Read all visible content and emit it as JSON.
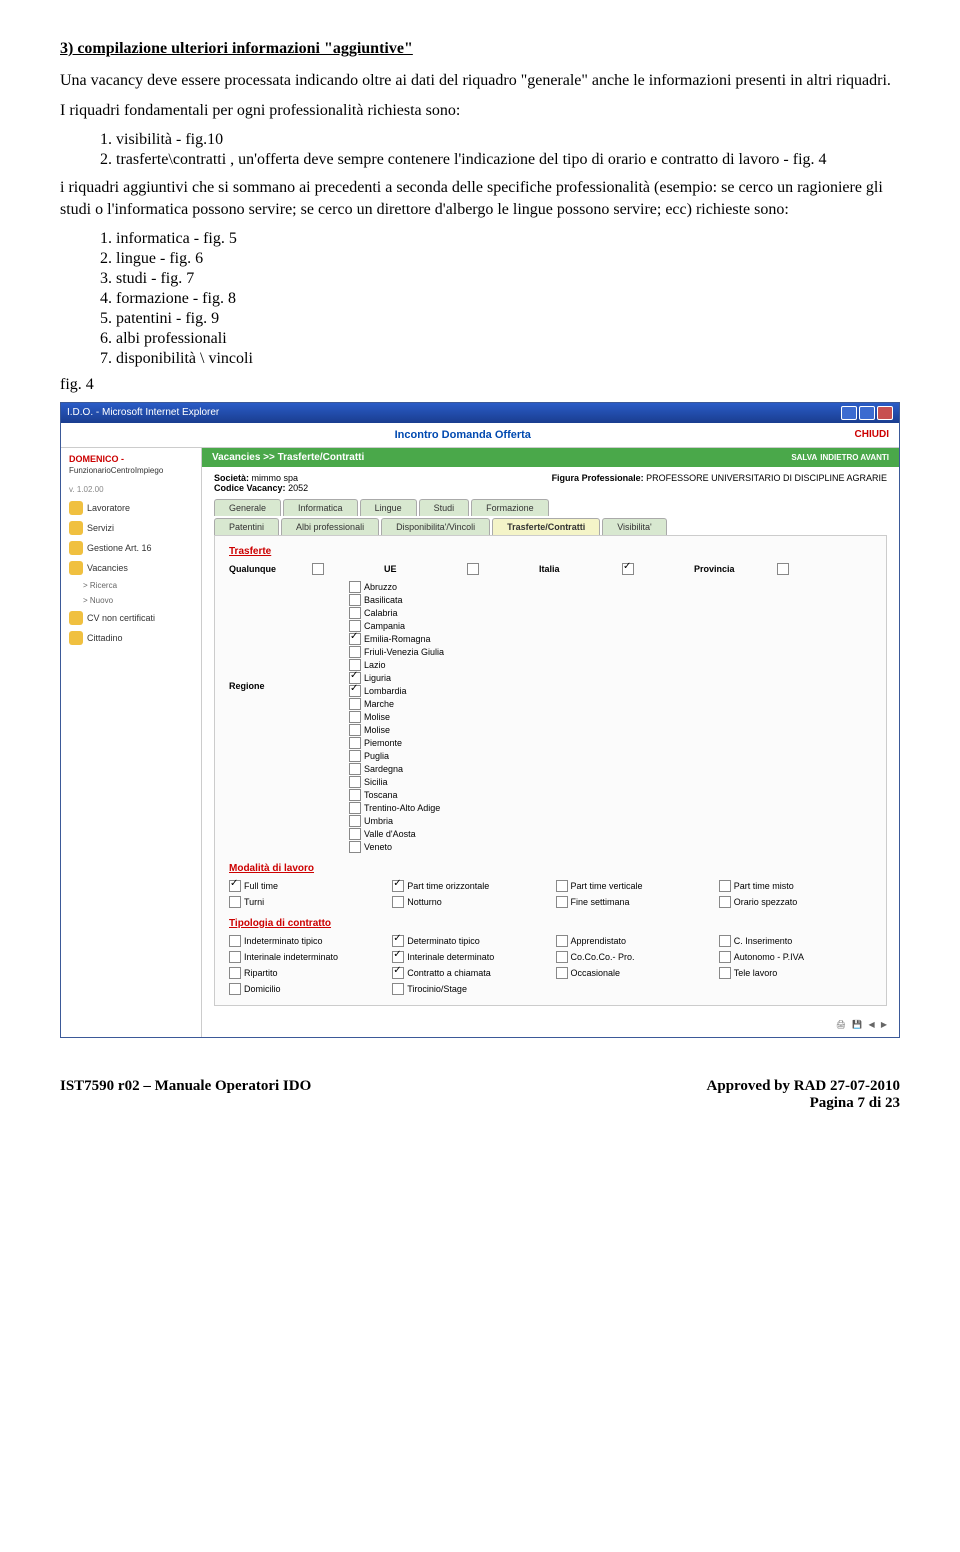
{
  "doc": {
    "section_title": "3) compilazione ulteriori informazioni \"aggiuntive\"",
    "para1": "Una vacancy deve essere processata indicando oltre ai dati del riquadro \"generale\" anche le informazioni presenti in altri riquadri.",
    "para2": "I riquadri fondamentali per ogni professionalità richiesta sono:",
    "list1_1": "1.  visibilità  - fig.10",
    "list1_2": "2.  trasferte\\contratti , un'offerta deve sempre contenere l'indicazione del tipo di orario e contratto di lavoro - fig. 4",
    "para3": "i riquadri aggiuntivi che si sommano ai precedenti a seconda delle specifiche professionalità (esempio: se cerco un ragioniere gli studi o l'informatica possono servire; se cerco un direttore d'albergo le lingue possono servire; ecc) richieste sono:",
    "list2_1": "1.  informatica - fig. 5",
    "list2_2": "2.  lingue  - fig. 6",
    "list2_3": "3.  studi  - fig. 7",
    "list2_4": "4.  formazione - fig. 8",
    "list2_5": "5.  patentini - fig. 9",
    "list2_6": "6.  albi professionali",
    "list2_7": "7.  disponibilità \\ vincoli",
    "fig_label": "fig. 4",
    "footer_left": "IST7590 r02 – Manuale Operatori IDO",
    "footer_right": "Approved by RAD 27-07-2010",
    "page_num": "Pagina 7 di 23"
  },
  "ss": {
    "window_title": "I.D.O. - Microsoft Internet Explorer",
    "header_title": "Incontro Domanda Offerta",
    "chiudi": "CHIUDI",
    "user": "DOMENICO -",
    "role": "FunzionarioCentroImpiego",
    "version": "v. 1.02.00",
    "sidebar": [
      "Lavoratore",
      "Servizi",
      "Gestione Art. 16",
      "Vacancies",
      "> Ricerca",
      "> Nuovo",
      "CV non certificati",
      "Cittadino"
    ],
    "breadcrumb": "Vacancies >> Trasferte/Contratti",
    "salva": "SALVA",
    "indietro": "INDIETRO  AVANTI",
    "societa_lbl": "Società:",
    "societa_val": "mimmo spa",
    "codice_lbl": "Codice Vacancy:",
    "codice_val": "2052",
    "figura_lbl": "Figura Professionale:",
    "figura_val": "PROFESSORE UNIVERSITARIO DI DISCIPLINE AGRARIE",
    "tabs_r1": [
      "Generale",
      "Informatica",
      "Lingue",
      "Studi",
      "Formazione"
    ],
    "tabs_r2": [
      "Patentini",
      "Albi professionali",
      "Disponibilita'/Vincoli",
      "Trasferte/Contratti",
      "Visibilita'"
    ],
    "active_tab": "Trasferte/Contratti",
    "sec_trasferte": "Trasferte",
    "qualunque": "Qualunque",
    "ue": "UE",
    "italia": "Italia",
    "provincia": "Provincia",
    "regione_lbl": "Regione",
    "regioni": [
      "Abruzzo",
      "Basilicata",
      "Calabria",
      "Campania",
      "Emilia-Romagna",
      "Friuli-Venezia Giulia",
      "Lazio",
      "Liguria",
      "Lombardia",
      "Marche",
      "Molise",
      "Molise",
      "Piemonte",
      "Puglia",
      "Sardegna",
      "Sicilia",
      "Toscana",
      "Trentino-Alto Adige",
      "Umbria",
      "Valle d'Aosta",
      "Veneto"
    ],
    "regioni_checked": [
      4,
      7,
      8
    ],
    "sec_modalita": "Modalità di lavoro",
    "modalita": [
      "Full time",
      "Part time orizzontale",
      "Part time verticale",
      "Part time misto",
      "Turni",
      "Notturno",
      "Fine settimana",
      "Orario spezzato"
    ],
    "modalita_checked": [
      0,
      1
    ],
    "sec_tipologia": "Tipologia di contratto",
    "tipologie": [
      "Indeterminato tipico",
      "Determinato tipico",
      "Apprendistato",
      "C. Inserimento",
      "Interinale indeterminato",
      "Interinale determinato",
      "Co.Co.Co.- Pro.",
      "Autonomo - P.IVA",
      "Ripartito",
      "Contratto a chiamata",
      "Occasionale",
      "Tele lavoro",
      "Domicilio",
      "Tirocinio/Stage"
    ],
    "tipologie_checked": [
      1,
      5,
      9
    ]
  }
}
